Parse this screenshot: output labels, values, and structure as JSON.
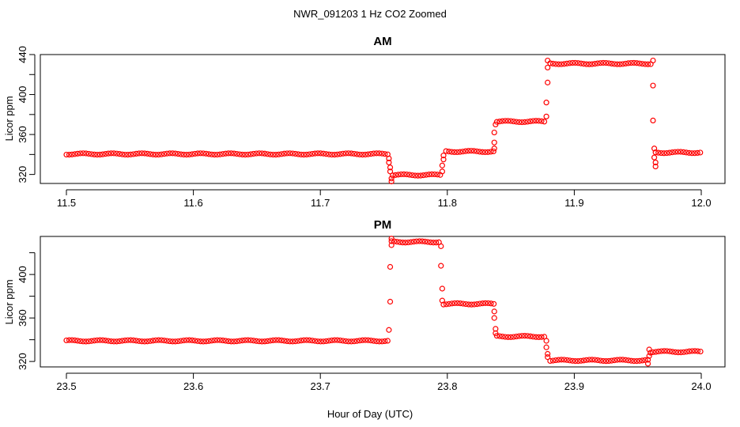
{
  "figure_title": "NWR_091203  1 Hz CO2 Zoomed",
  "xlabel": "Hour of Day (UTC)",
  "colors": {
    "points": "#ff0000",
    "axes": "#000000",
    "background": "#ffffff"
  },
  "chart_data": [
    {
      "type": "scatter",
      "title": "AM",
      "ylabel": "Licor ppm",
      "xlim": [
        11.5,
        12.0
      ],
      "ylim": [
        311,
        440
      ],
      "x_ticks": [
        11.5,
        11.6,
        11.7,
        11.8,
        11.9,
        12.0
      ],
      "x_tick_labels": [
        "11.5",
        "11.6",
        "11.7",
        "11.8",
        "11.9",
        "12.0"
      ],
      "y_ticks": [
        320,
        340,
        360,
        380,
        400,
        420,
        440
      ],
      "y_tick_labels": [
        "320",
        "",
        "360",
        "",
        "400",
        "",
        "440"
      ],
      "grid": false,
      "segments": [
        {
          "x_start": 11.5,
          "x_end": 11.754,
          "y": 340.5
        },
        {
          "x_start": 11.757,
          "x_end": 11.795,
          "y": 319.5
        },
        {
          "x_start": 11.799,
          "x_end": 11.837,
          "y": 343
        },
        {
          "x_start": 11.839,
          "x_end": 11.878,
          "y": 373
        },
        {
          "x_start": 11.881,
          "x_end": 11.961,
          "y": 431
        },
        {
          "x_start": 11.964,
          "x_end": 12.0,
          "y": 342
        }
      ],
      "transitions": [
        {
          "x": 11.754,
          "y": 336
        },
        {
          "x": 11.754,
          "y": 332
        },
        {
          "x": 11.755,
          "y": 327
        },
        {
          "x": 11.755,
          "y": 323
        },
        {
          "x": 11.756,
          "y": 316
        },
        {
          "x": 11.756,
          "y": 313
        },
        {
          "x": 11.796,
          "y": 323
        },
        {
          "x": 11.796,
          "y": 329
        },
        {
          "x": 11.797,
          "y": 335
        },
        {
          "x": 11.797,
          "y": 339
        },
        {
          "x": 11.837,
          "y": 346
        },
        {
          "x": 11.837,
          "y": 352
        },
        {
          "x": 11.837,
          "y": 362
        },
        {
          "x": 11.838,
          "y": 370
        },
        {
          "x": 11.878,
          "y": 378
        },
        {
          "x": 11.878,
          "y": 392
        },
        {
          "x": 11.879,
          "y": 412
        },
        {
          "x": 11.879,
          "y": 427
        },
        {
          "x": 11.879,
          "y": 434
        },
        {
          "x": 11.962,
          "y": 434
        },
        {
          "x": 11.962,
          "y": 409
        },
        {
          "x": 11.962,
          "y": 374
        },
        {
          "x": 11.963,
          "y": 346
        },
        {
          "x": 11.963,
          "y": 337
        },
        {
          "x": 11.964,
          "y": 332
        },
        {
          "x": 11.964,
          "y": 328
        }
      ]
    },
    {
      "type": "scatter",
      "title": "PM",
      "ylabel": "Licor ppm",
      "xlim": [
        23.5,
        24.0
      ],
      "ylim": [
        315,
        435
      ],
      "x_ticks": [
        23.5,
        23.6,
        23.7,
        23.8,
        23.9,
        24.0
      ],
      "x_tick_labels": [
        "23.5",
        "23.6",
        "23.7",
        "23.8",
        "23.9",
        "24.0"
      ],
      "y_ticks": [
        320,
        340,
        360,
        380,
        400,
        420
      ],
      "y_tick_labels": [
        "320",
        "",
        "360",
        "",
        "400",
        ""
      ],
      "grid": false,
      "segments": [
        {
          "x_start": 23.5,
          "x_end": 23.754,
          "y": 339
        },
        {
          "x_start": 23.756,
          "x_end": 23.794,
          "y": 430
        },
        {
          "x_start": 23.797,
          "x_end": 23.837,
          "y": 373
        },
        {
          "x_start": 23.839,
          "x_end": 23.878,
          "y": 343
        },
        {
          "x_start": 23.881,
          "x_end": 23.958,
          "y": 321
        },
        {
          "x_start": 23.962,
          "x_end": 24.0,
          "y": 329
        }
      ],
      "transitions": [
        {
          "x": 23.754,
          "y": 349
        },
        {
          "x": 23.755,
          "y": 375
        },
        {
          "x": 23.755,
          "y": 407
        },
        {
          "x": 23.756,
          "y": 427
        },
        {
          "x": 23.756,
          "y": 433
        },
        {
          "x": 23.795,
          "y": 426
        },
        {
          "x": 23.795,
          "y": 408
        },
        {
          "x": 23.796,
          "y": 387
        },
        {
          "x": 23.796,
          "y": 376
        },
        {
          "x": 23.837,
          "y": 366
        },
        {
          "x": 23.837,
          "y": 360
        },
        {
          "x": 23.838,
          "y": 350
        },
        {
          "x": 23.838,
          "y": 346
        },
        {
          "x": 23.878,
          "y": 339
        },
        {
          "x": 23.878,
          "y": 333
        },
        {
          "x": 23.879,
          "y": 327
        },
        {
          "x": 23.879,
          "y": 324
        },
        {
          "x": 23.958,
          "y": 318
        },
        {
          "x": 23.959,
          "y": 331
        },
        {
          "x": 23.959,
          "y": 325
        },
        {
          "x": 23.96,
          "y": 328
        }
      ]
    }
  ]
}
